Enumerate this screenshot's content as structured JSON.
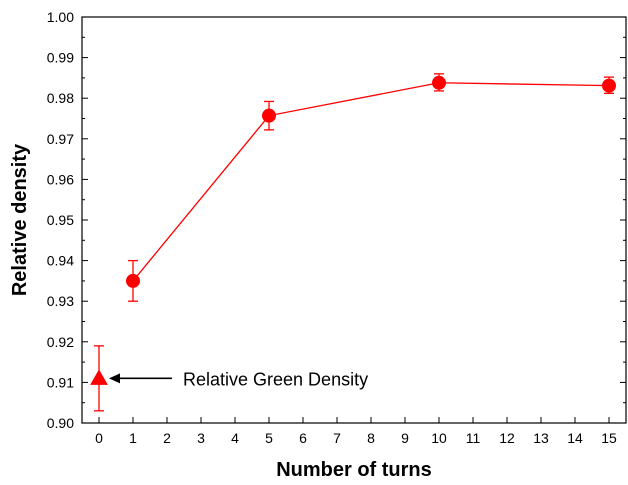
{
  "chart_data": {
    "type": "scatter",
    "xlabel": "Number of turns",
    "ylabel": "Relative density",
    "xlim": [
      -0.5,
      15.5
    ],
    "ylim": [
      0.9,
      1.0
    ],
    "x_ticks": [
      0,
      1,
      2,
      3,
      4,
      5,
      6,
      7,
      8,
      9,
      10,
      11,
      12,
      13,
      14,
      15
    ],
    "y_ticks": [
      0.9,
      0.91,
      0.92,
      0.93,
      0.94,
      0.95,
      0.96,
      0.97,
      0.98,
      0.99,
      1.0
    ],
    "y_tick_labels": [
      "0.90",
      "0.91",
      "0.92",
      "0.93",
      "0.94",
      "0.95",
      "0.96",
      "0.97",
      "0.98",
      "0.99",
      "1.00"
    ],
    "grid": false,
    "color": "#ff0000",
    "series": [
      {
        "marker": "circle",
        "line": true,
        "points": [
          {
            "x": 1,
            "y": 0.935,
            "err_low": 0.93,
            "err_high": 0.94
          },
          {
            "x": 5,
            "y": 0.9757,
            "err_low": 0.9722,
            "err_high": 0.9792
          },
          {
            "x": 10,
            "y": 0.9838,
            "err_low": 0.9818,
            "err_high": 0.986
          },
          {
            "x": 15,
            "y": 0.9831,
            "err_low": 0.9812,
            "err_high": 0.9852
          }
        ]
      },
      {
        "marker": "triangle",
        "line": false,
        "points": [
          {
            "x": 0,
            "y": 0.911,
            "err_low": 0.903,
            "err_high": 0.919
          }
        ]
      }
    ],
    "annotations": [
      {
        "text": "Relative Green Density",
        "x": 0,
        "y": 0.911
      }
    ]
  }
}
